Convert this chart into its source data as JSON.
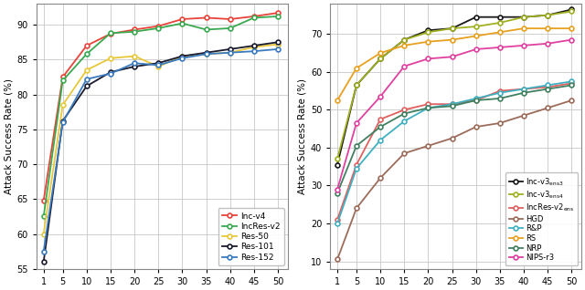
{
  "x": [
    1,
    5,
    10,
    15,
    20,
    25,
    30,
    35,
    40,
    45,
    50
  ],
  "left": {
    "Inc-v4": [
      64.8,
      82.5,
      87.0,
      88.7,
      89.3,
      89.8,
      90.8,
      91.0,
      90.8,
      91.2,
      91.7
    ],
    "IncRes-v2": [
      62.5,
      82.0,
      85.8,
      88.8,
      89.0,
      89.5,
      90.2,
      89.3,
      89.5,
      91.0,
      91.2
    ],
    "Res-50": [
      60.0,
      78.5,
      83.5,
      85.2,
      85.5,
      84.0,
      85.5,
      85.8,
      86.0,
      86.8,
      87.2
    ],
    "Res-101": [
      56.0,
      76.2,
      81.2,
      83.2,
      84.0,
      84.5,
      85.5,
      86.0,
      86.5,
      87.0,
      87.5
    ],
    "Res-152": [
      57.5,
      76.0,
      82.2,
      83.0,
      84.5,
      84.2,
      85.2,
      85.8,
      86.0,
      86.2,
      86.5
    ]
  },
  "left_colors": {
    "Inc-v4": "#e8433a",
    "IncRes-v2": "#3aaa50",
    "Res-50": "#e8c83a",
    "Res-101": "#1a1a2e",
    "Res-152": "#3a7abf"
  },
  "left_ylim": [
    55,
    93
  ],
  "left_yticks": [
    55,
    60,
    65,
    70,
    75,
    80,
    85,
    90
  ],
  "right": {
    "Inc-v3ens3": [
      35.5,
      56.5,
      63.5,
      68.5,
      71.0,
      71.5,
      74.5,
      74.5,
      74.5,
      75.0,
      76.5
    ],
    "Inc-v3ens4": [
      37.0,
      56.5,
      63.5,
      68.5,
      70.5,
      71.5,
      72.0,
      73.0,
      74.5,
      75.0,
      76.0
    ],
    "IncRes-v2ens": [
      21.0,
      35.5,
      47.5,
      50.0,
      51.5,
      51.5,
      52.5,
      55.0,
      55.5,
      56.0,
      57.0
    ],
    "HGD": [
      10.5,
      24.0,
      32.0,
      38.5,
      40.5,
      42.5,
      45.5,
      46.5,
      48.5,
      50.5,
      52.5
    ],
    "R&P": [
      20.0,
      34.5,
      42.0,
      47.0,
      50.5,
      51.5,
      53.0,
      54.5,
      55.5,
      56.5,
      57.5
    ],
    "RS": [
      52.5,
      61.0,
      65.0,
      67.0,
      68.0,
      68.5,
      69.5,
      70.5,
      71.5,
      71.5,
      71.5
    ],
    "NRP": [
      28.0,
      40.5,
      45.5,
      49.0,
      50.5,
      51.0,
      52.5,
      53.0,
      54.5,
      55.5,
      56.5
    ],
    "NIPS-r3": [
      29.0,
      46.5,
      53.5,
      61.5,
      63.5,
      64.0,
      66.0,
      66.5,
      67.0,
      67.5,
      68.5
    ]
  },
  "right_colors": {
    "Inc-v3ens3": "#1a1a1a",
    "Inc-v3ens4": "#a0b020",
    "IncRes-v2ens": "#e06060",
    "HGD": "#9c6b5a",
    "R&P": "#40b0c0",
    "RS": "#e8a020",
    "NRP": "#408060",
    "NIPS-r3": "#e040a0"
  },
  "right_ylim": [
    8,
    78
  ],
  "right_yticks": [
    10,
    20,
    30,
    40,
    50,
    60,
    70
  ],
  "ylabel": "Attack Success Rate (%)",
  "xticks": [
    1,
    5,
    10,
    15,
    20,
    25,
    30,
    35,
    40,
    45,
    50
  ],
  "right_legend_labels": {
    "Inc-v3ens3": "Inc-v3",
    "Inc-v3ens4": "Inc-v3",
    "IncRes-v2ens": "IncRes-v2",
    "HGD": "HGD",
    "R&P": "R&P",
    "RS": "RS",
    "NRP": "NRP",
    "NIPS-r3": "NIPS-r3"
  },
  "right_legend_subs": {
    "Inc-v3ens3": "ens3",
    "Inc-v3ens4": "ens4",
    "IncRes-v2ens": "ens",
    "HGD": "",
    "R&P": "",
    "RS": "",
    "NRP": "",
    "NIPS-r3": ""
  }
}
